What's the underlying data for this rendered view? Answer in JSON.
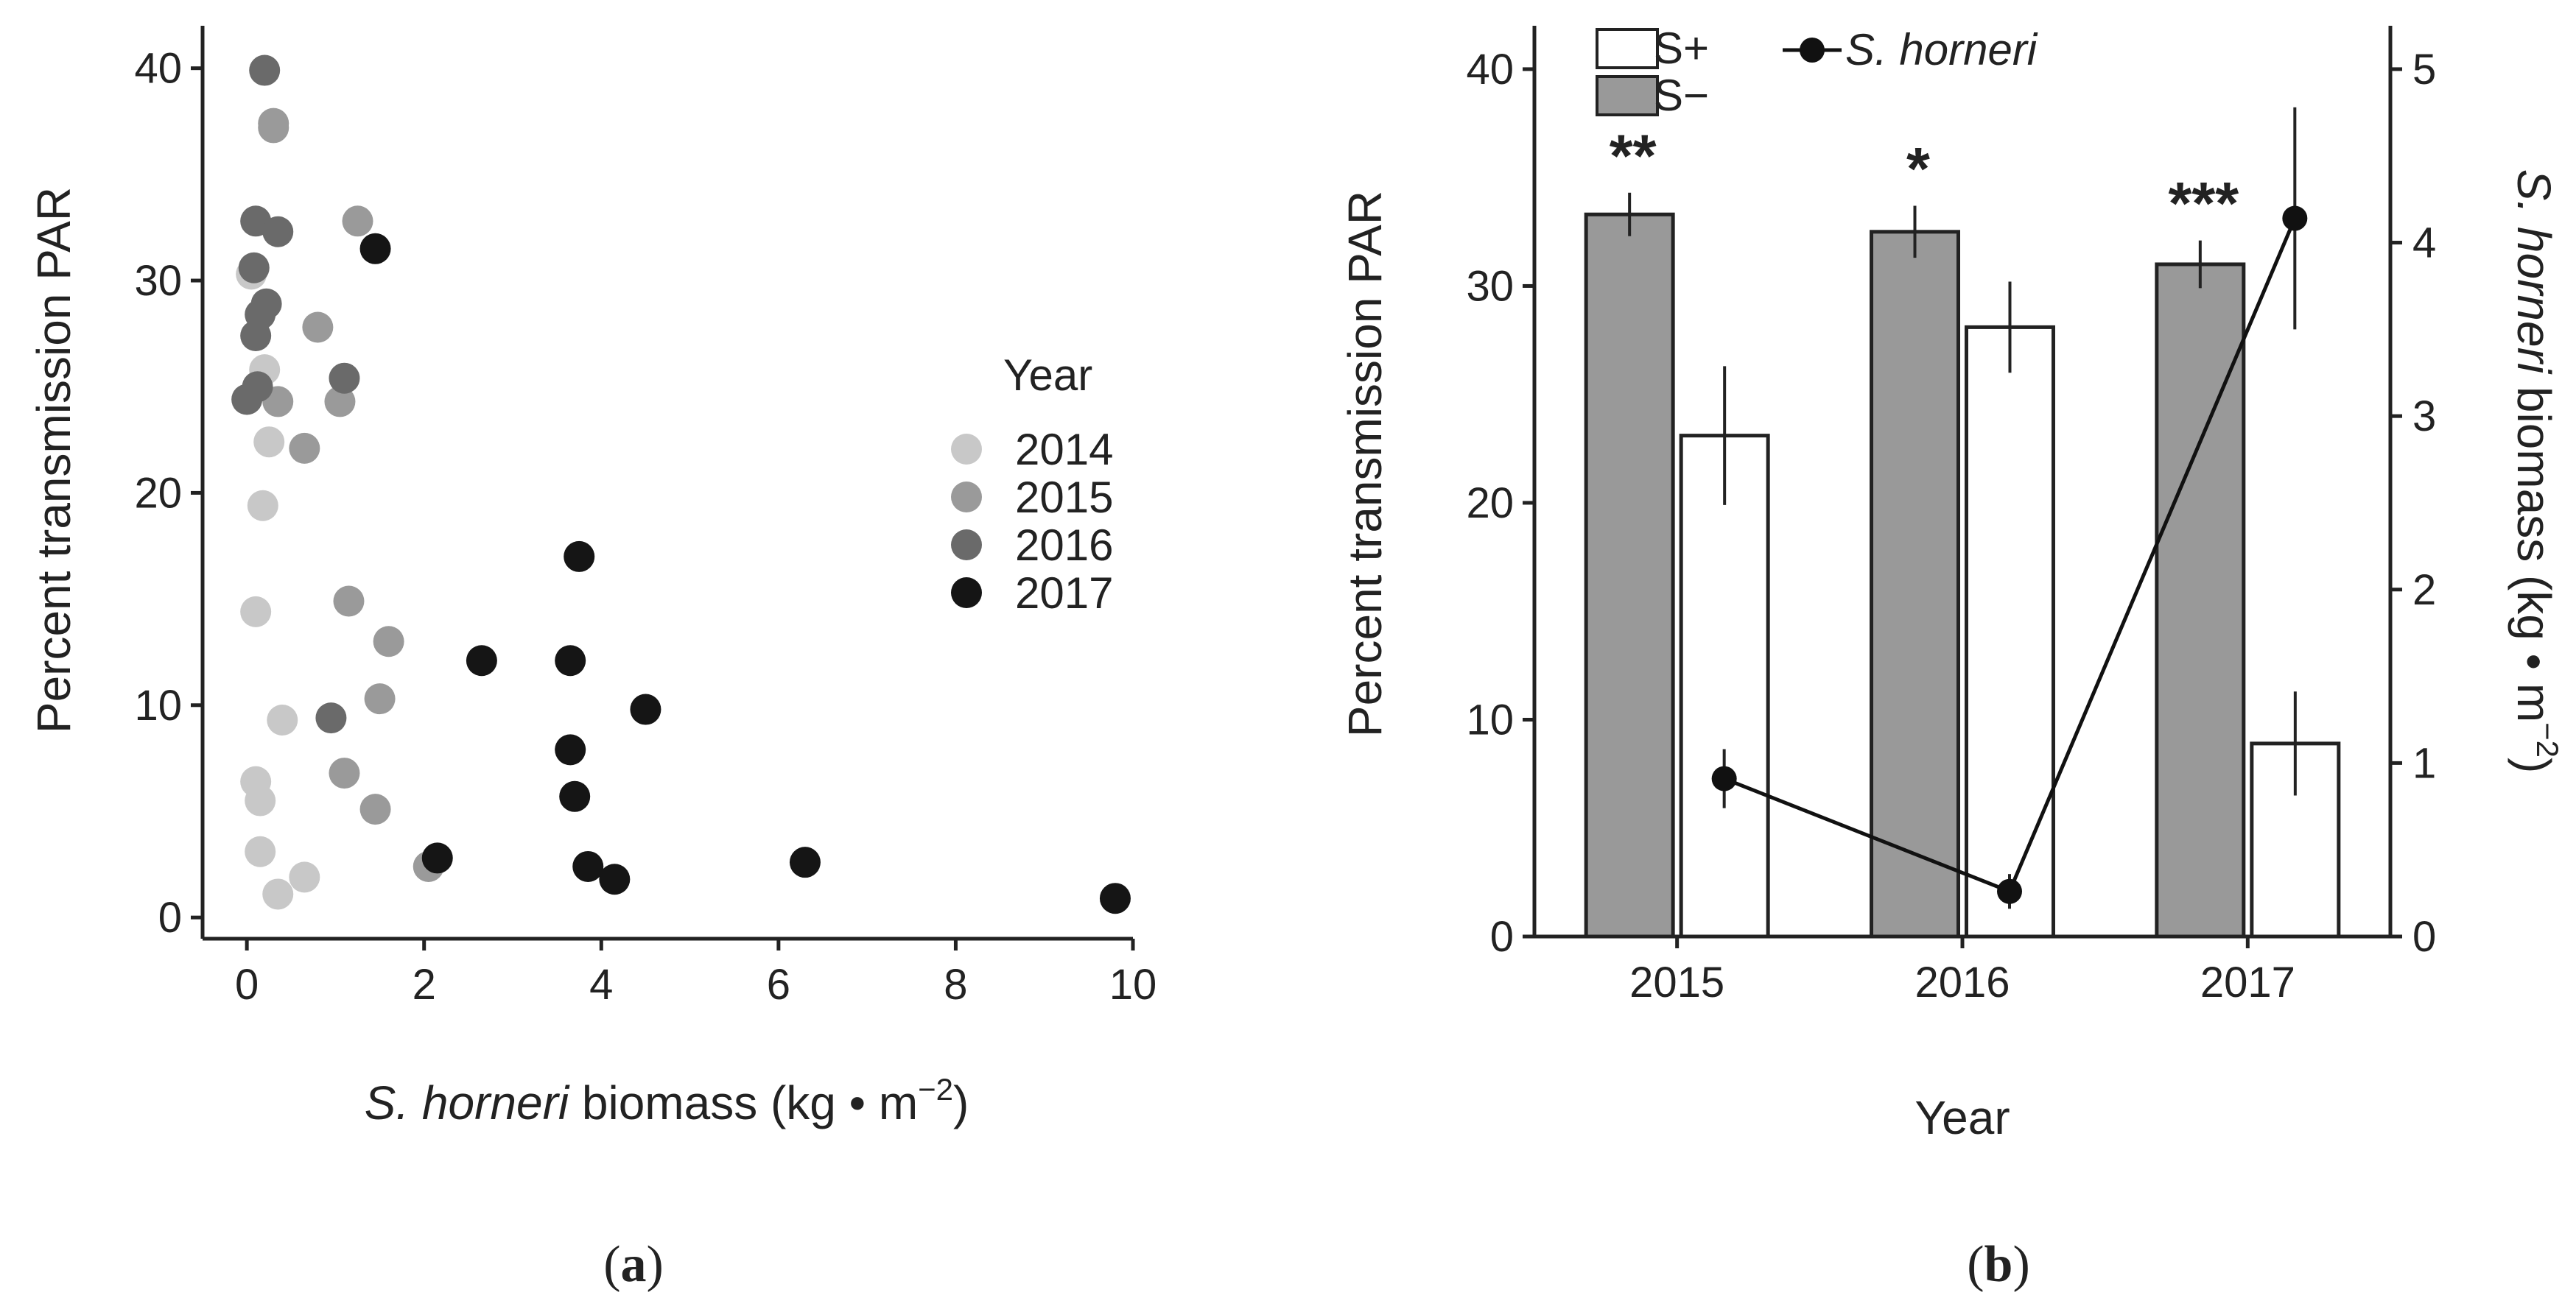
{
  "chart_data": [
    {
      "panel": "a",
      "type": "scatter",
      "xlabel_italic": "S. horneri",
      "xlabel_rest": " biomass (kg • m",
      "xlabel_sup": "−2",
      "xlabel_close": ")",
      "ylabel": "Percent transmission PAR",
      "xlim": [
        -0.5,
        10
      ],
      "ylim": [
        -1,
        42
      ],
      "x_ticks": [
        0,
        2,
        4,
        6,
        8,
        10
      ],
      "y_ticks": [
        0,
        10,
        20,
        30,
        40
      ],
      "legend_title": "Year",
      "legend_position": "right",
      "series": [
        {
          "name": "2014",
          "color": "#c8c8c8",
          "points": [
            [
              0.05,
              30.3
            ],
            [
              0.2,
              25.8
            ],
            [
              0.25,
              22.4
            ],
            [
              0.18,
              19.4
            ],
            [
              0.1,
              14.4
            ],
            [
              0.1,
              6.4
            ],
            [
              0.15,
              5.5
            ],
            [
              0.15,
              3.1
            ],
            [
              0.4,
              9.3
            ],
            [
              0.35,
              1.1
            ],
            [
              0.65,
              1.9
            ]
          ]
        },
        {
          "name": "2015",
          "color": "#9a9a9a",
          "points": [
            [
              0.3,
              37.4
            ],
            [
              0.3,
              37.2
            ],
            [
              1.25,
              32.8
            ],
            [
              0.8,
              27.8
            ],
            [
              0.35,
              24.3
            ],
            [
              0.65,
              22.1
            ],
            [
              1.05,
              24.3
            ],
            [
              1.15,
              14.9
            ],
            [
              1.6,
              13.0
            ],
            [
              1.5,
              10.3
            ],
            [
              1.1,
              6.8
            ],
            [
              1.45,
              5.1
            ],
            [
              2.05,
              2.4
            ]
          ]
        },
        {
          "name": "2016",
          "color": "#6a6a6a",
          "points": [
            [
              0.2,
              39.9
            ],
            [
              0.1,
              32.8
            ],
            [
              0.35,
              32.3
            ],
            [
              0.08,
              30.6
            ],
            [
              0.22,
              28.9
            ],
            [
              0.15,
              28.4
            ],
            [
              0.1,
              27.4
            ],
            [
              0.12,
              25.0
            ],
            [
              0.0,
              24.4
            ],
            [
              1.1,
              25.4
            ],
            [
              0.95,
              9.4
            ]
          ]
        },
        {
          "name": "2017",
          "color": "#151515",
          "points": [
            [
              1.45,
              31.5
            ],
            [
              3.75,
              17.0
            ],
            [
              2.65,
              12.1
            ],
            [
              3.65,
              12.1
            ],
            [
              4.5,
              9.8
            ],
            [
              3.65,
              7.9
            ],
            [
              3.7,
              5.7
            ],
            [
              2.15,
              2.8
            ],
            [
              3.85,
              2.4
            ],
            [
              4.15,
              1.8
            ],
            [
              6.3,
              2.6
            ],
            [
              9.8,
              0.9
            ]
          ]
        }
      ]
    },
    {
      "panel": "b",
      "type": "bar",
      "xlabel": "Year",
      "ylabel": "Percent transmission PAR",
      "y2label_italic": "S. horneri",
      "y2label_rest": " biomass (kg • m",
      "y2label_sup": "−2",
      "y2label_close": ")",
      "categories": [
        "2015",
        "2016",
        "2017"
      ],
      "ylim": [
        0,
        42
      ],
      "y_ticks": [
        0,
        10,
        20,
        30,
        40
      ],
      "y2lim": [
        0,
        5.25
      ],
      "y2_ticks": [
        0,
        1,
        2,
        3,
        4,
        5
      ],
      "series": [
        {
          "name": "S−",
          "fill": "#999999",
          "values": [
            33.3,
            32.5,
            31.0
          ],
          "errors": [
            1.0,
            1.2,
            1.1
          ]
        },
        {
          "name": "S+",
          "fill": "#ffffff",
          "values": [
            23.1,
            28.1,
            8.9
          ],
          "errors": [
            3.2,
            2.1,
            2.4
          ]
        }
      ],
      "line_series": {
        "name": "S. horneri",
        "values": [
          0.91,
          0.26,
          4.14
        ],
        "errors": [
          0.17,
          0.1,
          0.64
        ]
      },
      "significance": [
        "**",
        "*",
        "***"
      ],
      "legend_position": "top-left"
    }
  ],
  "panel_labels": {
    "a": "(a)",
    "b": "(b)"
  }
}
